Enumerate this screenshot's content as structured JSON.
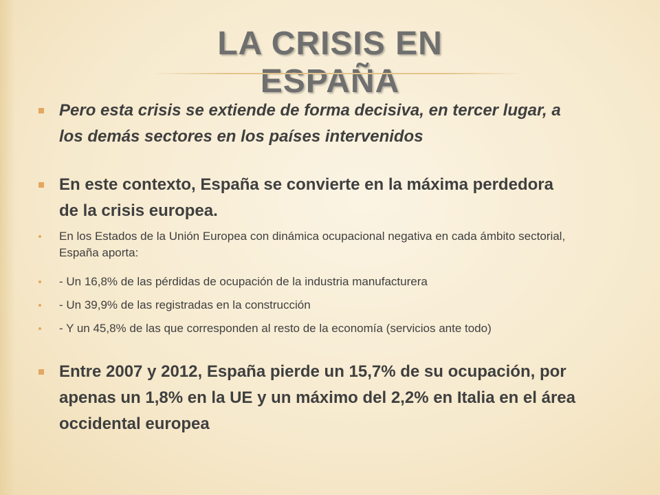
{
  "title": "LA CRISIS EN ESPAÑA",
  "colors": {
    "background": "#f7ecd4",
    "title": "#6f6f6f",
    "bullet": "#e3a760",
    "text": "#3f3f3f"
  },
  "bullets": [
    {
      "text": "Pero esta crisis se extiende de forma decisiva, en tercer lugar, a los demás sectores en los países intervenidos"
    },
    {
      "text": "En este contexto, España se convierte en la máxima perdedora de la crisis europea."
    },
    {
      "text": "En los Estados de la Unión Europea con dinámica ocupacional negativa en cada ámbito sectorial, España aporta:"
    },
    {
      "text": "- Un 16,8% de las pérdidas de ocupación de la industria manufacturera"
    },
    {
      "text": "- Un 39,9% de las registradas en la construcción"
    },
    {
      "text": "- Y un 45,8% de las que corresponden al resto de la economía (servicios ante todo)"
    },
    {
      "text": "Entre 2007 y 2012, España pierde un 15,7% de su ocupación, por apenas un 1,8% en la UE y un máximo del 2,2% en Italia en el área occidental europea"
    }
  ]
}
